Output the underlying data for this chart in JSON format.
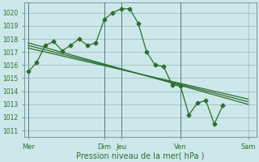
{
  "background_color": "#cce8ea",
  "grid_color": "#99bbbb",
  "line_color": "#2d6e2d",
  "ylim": [
    1010.5,
    1020.8
  ],
  "yticks": [
    1011,
    1012,
    1013,
    1014,
    1015,
    1016,
    1017,
    1018,
    1019,
    1020
  ],
  "xlabel": "Pression niveau de la mer( hPa )",
  "day_labels": [
    "Mer",
    "Dim",
    "Jeu",
    "Ven",
    "Sam"
  ],
  "day_positions": [
    0,
    9,
    11,
    18,
    26
  ],
  "xlim": [
    -0.5,
    27
  ],
  "vline_positions": [
    0,
    9,
    11,
    18
  ],
  "line1_x": [
    0,
    1,
    2,
    3,
    4,
    5,
    6,
    7,
    8,
    9,
    10,
    11,
    12,
    13,
    14,
    15,
    16,
    17,
    18,
    19,
    20,
    21,
    22,
    23
  ],
  "line1_y": [
    1015.5,
    1016.2,
    1017.5,
    1017.8,
    1017.1,
    1017.5,
    1018.0,
    1017.5,
    1017.7,
    1019.5,
    1020.0,
    1020.3,
    1020.3,
    1019.2,
    1017.0,
    1016.0,
    1015.9,
    1014.5,
    1014.4,
    1012.2,
    1013.1,
    1013.3,
    1011.5,
    1012.9
  ],
  "line2_x": [
    0,
    26
  ],
  "line2_y": [
    1017.7,
    1013.0
  ],
  "line3_x": [
    0,
    26
  ],
  "line3_y": [
    1017.5,
    1013.2
  ],
  "line4_x": [
    0,
    26
  ],
  "line4_y": [
    1017.3,
    1013.4
  ],
  "marker_size": 2.5,
  "line_width": 0.9,
  "ytick_fontsize": 5.5,
  "xtick_fontsize": 6,
  "xlabel_fontsize": 7
}
